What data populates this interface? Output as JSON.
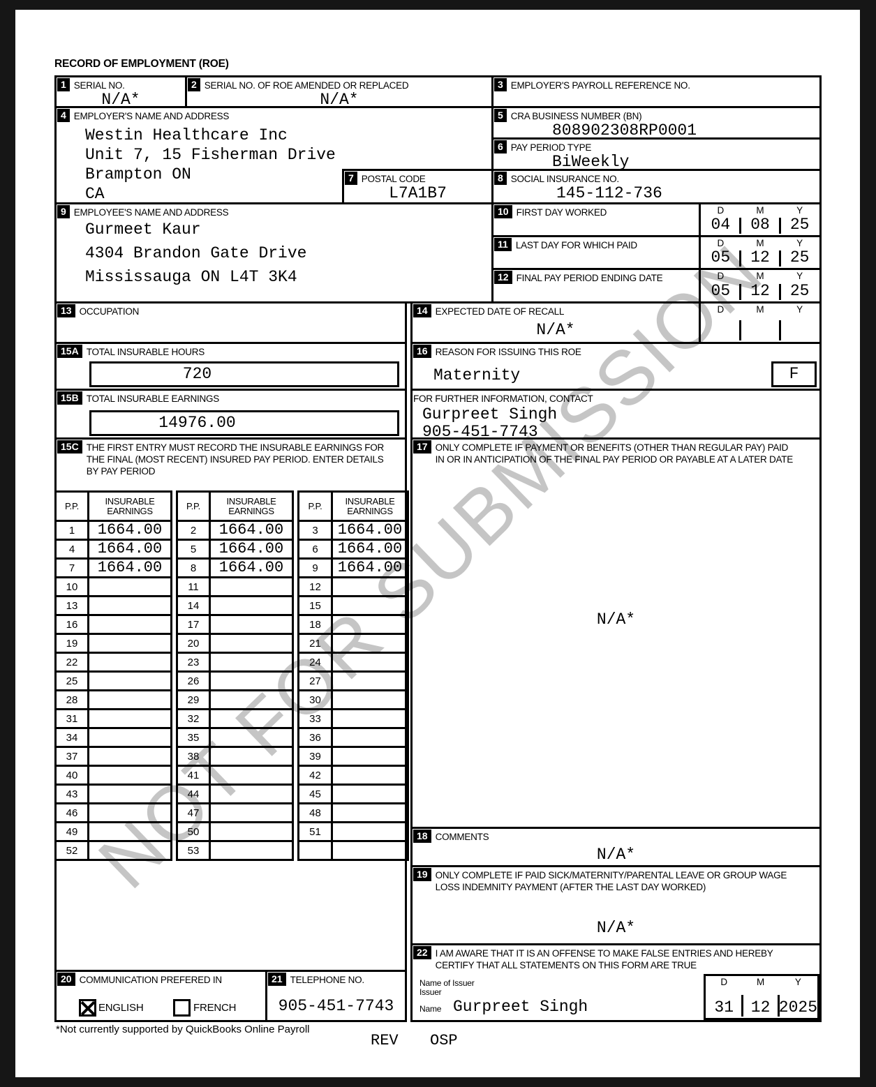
{
  "title": "RECORD OF EMPLOYMENT (ROE)",
  "watermark": "NOT FOR SUBMISSION",
  "colors": {
    "ink": "#000000",
    "paper": "#ffffff",
    "frame": "#161616",
    "watermark_gray": "#c5c5c5"
  },
  "date_headers": {
    "d": "D",
    "m": "M",
    "y": "Y"
  },
  "boxes": {
    "b1": {
      "num": "1",
      "label": "SERIAL NO.",
      "value": "N/A*"
    },
    "b2": {
      "num": "2",
      "label": "SERIAL NO. OF ROE AMENDED OR REPLACED",
      "value": "N/A*"
    },
    "b3": {
      "num": "3",
      "label": "EMPLOYER'S PAYROLL REFERENCE NO.",
      "value": ""
    },
    "b4": {
      "num": "4",
      "label": "EMPLOYER'S NAME AND ADDRESS",
      "lines": [
        "Westin Healthcare Inc",
        "Unit 7, 15 Fisherman Drive",
        "Brampton ON",
        "CA"
      ]
    },
    "b5": {
      "num": "5",
      "label": "CRA BUSINESS NUMBER (BN)",
      "value": "808902308RP0001"
    },
    "b6": {
      "num": "6",
      "label": "PAY PERIOD TYPE",
      "value": "BiWeekly"
    },
    "b7": {
      "num": "7",
      "label": "POSTAL CODE",
      "value": "L7A1B7"
    },
    "b8": {
      "num": "8",
      "label": "SOCIAL INSURANCE NO.",
      "value": "145-112-736"
    },
    "b9": {
      "num": "9",
      "label": "EMPLOYEE'S NAME AND ADDRESS",
      "lines": [
        "Gurmeet Kaur",
        "4304 Brandon Gate Drive",
        "Mississauga ON L4T 3K4"
      ]
    },
    "b10": {
      "num": "10",
      "label": "FIRST DAY WORKED",
      "d": "04",
      "m": "08",
      "y": "25"
    },
    "b11": {
      "num": "11",
      "label": "LAST DAY FOR WHICH PAID",
      "d": "05",
      "m": "12",
      "y": "25"
    },
    "b12": {
      "num": "12",
      "label": "FINAL PAY PERIOD ENDING DATE",
      "d": "05",
      "m": "12",
      "y": "25"
    },
    "b13": {
      "num": "13",
      "label": "OCCUPATION",
      "value": ""
    },
    "b14": {
      "num": "14",
      "label": "EXPECTED DATE OF RECALL",
      "value": "N/A*",
      "d": "",
      "m": "",
      "y": ""
    },
    "b15a": {
      "num": "15A",
      "label": "TOTAL INSURABLE HOURS",
      "value": "720"
    },
    "b15b": {
      "num": "15B",
      "label": "TOTAL INSURABLE EARNINGS",
      "value": "14976.00"
    },
    "b15c": {
      "num": "15C",
      "label": "THE FIRST ENTRY MUST RECORD THE INSURABLE EARNINGS FOR THE FINAL (MOST RECENT) INSURED PAY PERIOD. ENTER DETAILS BY PAY PERIOD"
    },
    "b16": {
      "num": "16",
      "label": "REASON FOR ISSUING THIS ROE",
      "value": "Maternity",
      "code": "F"
    },
    "contact": {
      "label": "FOR FURTHER INFORMATION, CONTACT",
      "lines": [
        "Gurpreet Singh",
        "905-451-7743"
      ]
    },
    "b17": {
      "num": "17",
      "label": "ONLY COMPLETE IF PAYMENT OR BENEFITS (OTHER THAN REGULAR PAY) PAID IN OR IN ANTICIPATION OF THE FINAL PAY PERIOD OR PAYABLE AT A LATER DATE",
      "value": "N/A*"
    },
    "b18": {
      "num": "18",
      "label": "COMMENTS",
      "value": "N/A*"
    },
    "b19": {
      "num": "19",
      "label": "ONLY COMPLETE IF PAID SICK/MATERNITY/PARENTAL LEAVE OR GROUP WAGE LOSS INDEMNITY PAYMENT (AFTER THE LAST DAY WORKED)",
      "value": "N/A*"
    },
    "b20": {
      "num": "20",
      "label": "COMMUNICATION PREFERED IN",
      "options": [
        {
          "label": "ENGLISH",
          "checked": true
        },
        {
          "label": "FRENCH",
          "checked": false
        }
      ]
    },
    "b21": {
      "num": "21",
      "label": "TELEPHONE NO.",
      "value": "905-451-7743"
    },
    "b22": {
      "num": "22",
      "label": "I AM AWARE THAT IT IS AN OFFENSE TO MAKE FALSE ENTRIES AND HEREBY CERTIFY THAT ALL STATEMENTS ON THIS FORM ARE TRUE",
      "issuer_label_1": "Name of Issuer",
      "issuer_label_2": "Issuer",
      "issuer_label_3": "Name",
      "issuer_name": "Gurpreet Singh",
      "d": "31",
      "m": "12",
      "y": "2025"
    }
  },
  "pay_period_table": {
    "col_pp": "P.P.",
    "col_earnings": "INSURABLE EARNINGS",
    "entries": [
      {
        "pp": "1",
        "value": "1664.00"
      },
      {
        "pp": "2",
        "value": "1664.00"
      },
      {
        "pp": "3",
        "value": "1664.00"
      },
      {
        "pp": "4",
        "value": "1664.00"
      },
      {
        "pp": "5",
        "value": "1664.00"
      },
      {
        "pp": "6",
        "value": "1664.00"
      },
      {
        "pp": "7",
        "value": "1664.00"
      },
      {
        "pp": "8",
        "value": "1664.00"
      },
      {
        "pp": "9",
        "value": "1664.00"
      },
      {
        "pp": "10",
        "value": ""
      },
      {
        "pp": "11",
        "value": ""
      },
      {
        "pp": "12",
        "value": ""
      },
      {
        "pp": "13",
        "value": ""
      },
      {
        "pp": "14",
        "value": ""
      },
      {
        "pp": "15",
        "value": ""
      },
      {
        "pp": "16",
        "value": ""
      },
      {
        "pp": "17",
        "value": ""
      },
      {
        "pp": "18",
        "value": ""
      },
      {
        "pp": "19",
        "value": ""
      },
      {
        "pp": "20",
        "value": ""
      },
      {
        "pp": "21",
        "value": ""
      },
      {
        "pp": "22",
        "value": ""
      },
      {
        "pp": "23",
        "value": ""
      },
      {
        "pp": "24",
        "value": ""
      },
      {
        "pp": "25",
        "value": ""
      },
      {
        "pp": "26",
        "value": ""
      },
      {
        "pp": "27",
        "value": ""
      },
      {
        "pp": "28",
        "value": ""
      },
      {
        "pp": "29",
        "value": ""
      },
      {
        "pp": "30",
        "value": ""
      },
      {
        "pp": "31",
        "value": ""
      },
      {
        "pp": "32",
        "value": ""
      },
      {
        "pp": "33",
        "value": ""
      },
      {
        "pp": "34",
        "value": ""
      },
      {
        "pp": "35",
        "value": ""
      },
      {
        "pp": "36",
        "value": ""
      },
      {
        "pp": "37",
        "value": ""
      },
      {
        "pp": "38",
        "value": ""
      },
      {
        "pp": "39",
        "value": ""
      },
      {
        "pp": "40",
        "value": ""
      },
      {
        "pp": "41",
        "value": ""
      },
      {
        "pp": "42",
        "value": ""
      },
      {
        "pp": "43",
        "value": ""
      },
      {
        "pp": "44",
        "value": ""
      },
      {
        "pp": "45",
        "value": ""
      },
      {
        "pp": "46",
        "value": ""
      },
      {
        "pp": "47",
        "value": ""
      },
      {
        "pp": "48",
        "value": ""
      },
      {
        "pp": "49",
        "value": ""
      },
      {
        "pp": "50",
        "value": ""
      },
      {
        "pp": "51",
        "value": ""
      },
      {
        "pp": "52",
        "value": ""
      },
      {
        "pp": "53",
        "value": ""
      },
      {
        "pp": "",
        "value": ""
      }
    ]
  },
  "footer": {
    "note": "*Not currently supported by QuickBooks Online Payroll",
    "rev": "REV",
    "osp": "OSP"
  }
}
